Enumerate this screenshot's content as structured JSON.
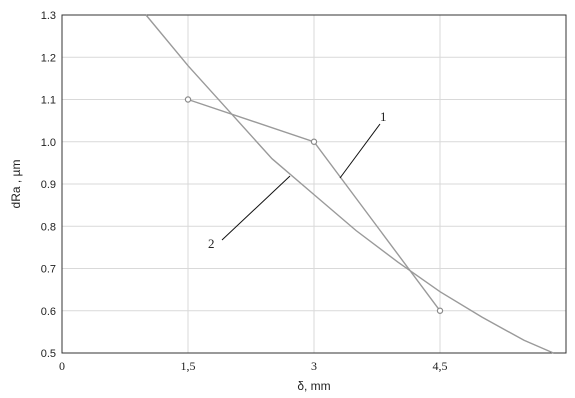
{
  "chart_data": {
    "type": "line",
    "title": "",
    "xlabel": "δ, mm",
    "ylabel": "dRa ,  µm",
    "xlim": [
      0,
      6
    ],
    "ylim": [
      0.5,
      1.3
    ],
    "x_ticks": [
      {
        "value": 0,
        "label": "0"
      },
      {
        "value": 1.5,
        "label": "1,5"
      },
      {
        "value": 3,
        "label": "3"
      },
      {
        "value": 4.5,
        "label": "4,5"
      }
    ],
    "y_ticks": [
      {
        "value": 0.5,
        "label": "0.5"
      },
      {
        "value": 0.6,
        "label": "0.6"
      },
      {
        "value": 0.7,
        "label": "0.7"
      },
      {
        "value": 0.8,
        "label": "0.8"
      },
      {
        "value": 0.9,
        "label": "0.9"
      },
      {
        "value": 1.0,
        "label": "1.0"
      },
      {
        "value": 1.1,
        "label": "1.1"
      },
      {
        "value": 1.2,
        "label": "1.2"
      },
      {
        "value": 1.3,
        "label": "1.3"
      }
    ],
    "grid": true,
    "series": [
      {
        "name": "1",
        "kind": "points-polyline",
        "markers": true,
        "x": [
          1.5,
          3,
          4.5
        ],
        "y": [
          1.1,
          1.0,
          0.6
        ]
      },
      {
        "name": "2",
        "kind": "fitted-curve",
        "markers": false,
        "x": [
          1.0,
          1.5,
          2.0,
          2.5,
          3.0,
          3.5,
          4.0,
          4.5,
          5.0,
          5.5,
          5.85
        ],
        "y": [
          1.3,
          1.18,
          1.07,
          0.96,
          0.875,
          0.79,
          0.715,
          0.645,
          0.585,
          0.53,
          0.5
        ]
      }
    ],
    "annotations": [
      {
        "text": "1",
        "series": "1"
      },
      {
        "text": "2",
        "series": "2"
      }
    ]
  }
}
